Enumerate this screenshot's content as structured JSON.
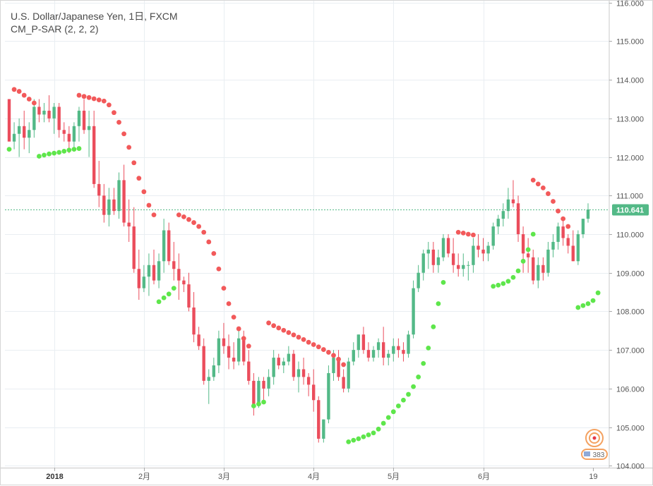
{
  "legend": {
    "title": "U.S. Dollar/Japanese Yen, 1日, FXCM",
    "indicator": "CM_P-SAR (2, 2, 2)"
  },
  "watermark": {
    "text": "383"
  },
  "chart_data": {
    "type": "candlestick",
    "ylim": [
      103.95,
      116.05
    ],
    "y_ticks": [
      "104.000",
      "105.000",
      "106.000",
      "107.000",
      "108.000",
      "109.000",
      "110.000",
      "111.000",
      "112.000",
      "113.000",
      "114.000",
      "115.000",
      "116.000"
    ],
    "x_ticks": [
      "2018",
      "2月",
      "3月",
      "4月",
      "5月",
      "6月",
      "19"
    ],
    "last_price": "110.641",
    "colors": {
      "up": "#53b987",
      "down": "#eb4d5c",
      "sar_up": "#5ee64b",
      "sar_down": "#f2595a",
      "grid": "#e9eef2",
      "price_line": "#53b987"
    },
    "candles": [
      [
        113.5,
        113.5,
        112.5,
        112.4
      ],
      [
        112.4,
        112.9,
        112.2,
        112.6
      ],
      [
        112.6,
        113.0,
        112.0,
        112.8
      ],
      [
        112.8,
        113.2,
        112.2,
        112.5
      ],
      [
        112.5,
        112.9,
        112.1,
        112.7
      ],
      [
        112.7,
        113.5,
        112.5,
        113.3
      ],
      [
        113.3,
        113.5,
        112.9,
        113.1
      ],
      [
        113.1,
        113.4,
        112.9,
        113.2
      ],
      [
        113.2,
        113.6,
        112.9,
        113.0
      ],
      [
        113.0,
        113.4,
        112.6,
        113.3
      ],
      [
        113.3,
        113.4,
        112.5,
        112.7
      ],
      [
        112.7,
        112.9,
        112.4,
        112.6
      ],
      [
        112.6,
        112.8,
        112.1,
        112.4
      ],
      [
        112.4,
        112.9,
        112.2,
        112.8
      ],
      [
        112.8,
        113.3,
        112.4,
        113.2
      ],
      [
        113.2,
        113.5,
        112.6,
        112.7
      ],
      [
        112.7,
        113.2,
        112.0,
        112.8
      ],
      [
        112.8,
        113.2,
        111.2,
        111.3
      ],
      [
        111.3,
        111.9,
        110.7,
        111.0
      ],
      [
        111.0,
        111.3,
        110.3,
        110.5
      ],
      [
        110.5,
        111.2,
        110.2,
        110.9
      ],
      [
        110.9,
        111.2,
        110.5,
        110.6
      ],
      [
        110.6,
        111.6,
        110.4,
        111.4
      ],
      [
        111.4,
        111.8,
        110.2,
        110.3
      ],
      [
        110.3,
        110.9,
        109.8,
        110.2
      ],
      [
        110.2,
        110.7,
        109.0,
        109.1
      ],
      [
        109.1,
        109.6,
        108.3,
        108.6
      ],
      [
        108.6,
        109.2,
        108.5,
        108.9
      ],
      [
        108.9,
        109.5,
        108.4,
        109.2
      ],
      [
        109.2,
        109.6,
        108.7,
        108.8
      ],
      [
        108.8,
        109.5,
        108.6,
        109.3
      ],
      [
        109.3,
        110.4,
        109.0,
        110.1
      ],
      [
        110.1,
        110.3,
        109.2,
        109.3
      ],
      [
        109.3,
        109.8,
        108.8,
        109.1
      ],
      [
        109.1,
        109.5,
        108.3,
        108.8
      ],
      [
        108.8,
        108.9,
        108.5,
        108.7
      ],
      [
        108.7,
        109.0,
        108.0,
        108.1
      ],
      [
        108.1,
        108.5,
        107.2,
        107.4
      ],
      [
        107.4,
        107.6,
        107.0,
        107.1
      ],
      [
        107.1,
        107.3,
        106.1,
        106.2
      ],
      [
        106.2,
        106.5,
        105.6,
        106.3
      ],
      [
        106.3,
        106.8,
        106.2,
        106.6
      ],
      [
        106.6,
        107.5,
        106.4,
        107.3
      ],
      [
        107.3,
        107.7,
        106.9,
        107.1
      ],
      [
        107.1,
        107.4,
        106.5,
        106.8
      ],
      [
        106.8,
        107.2,
        106.5,
        106.7
      ],
      [
        106.7,
        107.5,
        106.6,
        107.3
      ],
      [
        107.3,
        107.5,
        106.6,
        106.7
      ],
      [
        106.7,
        107.0,
        106.1,
        106.2
      ],
      [
        106.2,
        106.4,
        105.3,
        105.6
      ],
      [
        105.6,
        106.3,
        105.5,
        106.2
      ],
      [
        106.2,
        106.3,
        105.7,
        106.0
      ],
      [
        106.0,
        106.5,
        105.8,
        106.3
      ],
      [
        106.3,
        107.0,
        106.1,
        106.8
      ],
      [
        106.8,
        106.9,
        106.5,
        106.6
      ],
      [
        106.6,
        106.8,
        106.4,
        106.7
      ],
      [
        106.7,
        107.1,
        106.6,
        106.9
      ],
      [
        106.9,
        107.0,
        106.2,
        106.3
      ],
      [
        106.3,
        106.7,
        105.9,
        106.5
      ],
      [
        106.5,
        106.8,
        106.1,
        106.3
      ],
      [
        106.3,
        106.4,
        105.8,
        106.1
      ],
      [
        106.1,
        106.5,
        105.4,
        105.7
      ],
      [
        105.7,
        105.8,
        104.6,
        104.7
      ],
      [
        104.7,
        105.2,
        104.6,
        105.2
      ],
      [
        105.2,
        106.6,
        105.1,
        106.4
      ],
      [
        106.4,
        107.0,
        106.2,
        106.8
      ],
      [
        106.8,
        107.0,
        106.2,
        106.3
      ],
      [
        106.3,
        106.5,
        105.9,
        106.0
      ],
      [
        106.0,
        106.8,
        105.9,
        106.7
      ],
      [
        106.7,
        107.2,
        106.6,
        107.0
      ],
      [
        107.0,
        107.4,
        106.8,
        107.4
      ],
      [
        107.4,
        107.6,
        106.9,
        107.0
      ],
      [
        107.0,
        107.2,
        106.7,
        106.8
      ],
      [
        106.8,
        107.1,
        106.7,
        107.0
      ],
      [
        107.0,
        107.3,
        106.8,
        107.2
      ],
      [
        107.2,
        107.6,
        106.6,
        106.8
      ],
      [
        106.8,
        107.0,
        106.6,
        106.9
      ],
      [
        106.9,
        107.3,
        106.7,
        107.1
      ],
      [
        107.1,
        107.3,
        106.8,
        107.0
      ],
      [
        107.0,
        107.2,
        106.7,
        106.9
      ],
      [
        106.9,
        107.5,
        106.8,
        107.4
      ],
      [
        107.4,
        108.8,
        107.3,
        108.6
      ],
      [
        108.6,
        109.2,
        108.5,
        109.0
      ],
      [
        109.0,
        109.6,
        108.8,
        109.5
      ],
      [
        109.5,
        109.8,
        109.1,
        109.6
      ],
      [
        109.6,
        109.8,
        109.0,
        109.2
      ],
      [
        109.2,
        109.6,
        109.0,
        109.4
      ],
      [
        109.4,
        110.0,
        109.3,
        109.9
      ],
      [
        109.9,
        110.0,
        109.4,
        109.5
      ],
      [
        109.5,
        109.9,
        109.0,
        109.2
      ],
      [
        109.2,
        109.5,
        108.9,
        109.1
      ],
      [
        109.1,
        109.5,
        108.9,
        109.2
      ],
      [
        109.2,
        109.3,
        108.8,
        109.2
      ],
      [
        109.2,
        109.9,
        109.0,
        109.7
      ],
      [
        109.7,
        110.0,
        109.4,
        109.6
      ],
      [
        109.6,
        109.9,
        109.3,
        109.5
      ],
      [
        109.5,
        109.8,
        109.3,
        109.7
      ],
      [
        109.7,
        110.3,
        109.6,
        110.2
      ],
      [
        110.2,
        110.5,
        110.0,
        110.4
      ],
      [
        110.4,
        110.8,
        110.2,
        110.6
      ],
      [
        110.6,
        111.2,
        110.4,
        110.9
      ],
      [
        110.9,
        111.4,
        110.7,
        110.8
      ],
      [
        110.8,
        111.0,
        109.8,
        110.0
      ],
      [
        110.0,
        110.2,
        109.0,
        109.5
      ],
      [
        109.5,
        109.9,
        109.0,
        109.4
      ],
      [
        109.4,
        109.6,
        108.7,
        108.8
      ],
      [
        108.8,
        109.4,
        108.6,
        109.2
      ],
      [
        109.2,
        109.4,
        108.8,
        109.0
      ],
      [
        109.0,
        109.8,
        108.9,
        109.6
      ],
      [
        109.6,
        110.0,
        109.4,
        109.8
      ],
      [
        109.8,
        110.3,
        109.6,
        110.2
      ],
      [
        110.2,
        110.4,
        109.7,
        109.9
      ],
      [
        109.9,
        110.0,
        109.5,
        109.7
      ],
      [
        109.7,
        110.1,
        109.3,
        109.3
      ],
      [
        109.3,
        110.1,
        109.2,
        110.0
      ],
      [
        110.0,
        110.4,
        109.9,
        110.4
      ],
      [
        110.4,
        110.8,
        110.3,
        110.64
      ]
    ],
    "sar": [
      {
        "start": 0,
        "side": "long",
        "values": [
          112.2
        ]
      },
      {
        "start": 1,
        "side": "short",
        "values": [
          113.75,
          113.7,
          113.6,
          113.5,
          113.4
        ]
      },
      {
        "start": 6,
        "side": "long",
        "values": [
          112.02,
          112.05,
          112.08,
          112.1,
          112.12,
          112.15,
          112.18,
          112.2,
          112.22
        ]
      },
      {
        "start": 14,
        "side": "short",
        "values": [
          113.6,
          113.57,
          113.54,
          113.51,
          113.48,
          113.45,
          113.35,
          113.15,
          112.9,
          112.6,
          112.25,
          111.85,
          111.45,
          111.1,
          110.75,
          110.5
        ]
      },
      {
        "start": 30,
        "side": "long",
        "values": [
          108.25,
          108.35,
          108.45,
          108.6
        ]
      },
      {
        "start": 34,
        "side": "short",
        "values": [
          110.5,
          110.45,
          110.38,
          110.3,
          110.2,
          110.05,
          109.8,
          109.5,
          109.1,
          108.6,
          108.2,
          107.85,
          107.55,
          107.3,
          107.1
        ]
      },
      {
        "start": 49,
        "side": "long",
        "values": [
          105.55,
          105.6,
          105.65
        ]
      },
      {
        "start": 52,
        "side": "short",
        "values": [
          107.7,
          107.63,
          107.57,
          107.51,
          107.45,
          107.39,
          107.33,
          107.27,
          107.2,
          107.14,
          107.08,
          107.01,
          106.94,
          106.86,
          106.76,
          106.62
        ]
      },
      {
        "start": 68,
        "side": "long",
        "values": [
          104.62,
          104.66,
          104.7,
          104.75,
          104.8,
          104.85,
          104.95,
          105.1,
          105.25,
          105.4,
          105.55,
          105.7,
          105.85,
          106.05,
          106.3,
          106.65,
          107.05,
          107.6,
          108.2,
          108.75
        ]
      },
      {
        "start": 90,
        "side": "short",
        "values": [
          110.05,
          110.03,
          110.0,
          109.98
        ]
      },
      {
        "start": 97,
        "side": "long",
        "values": [
          108.65,
          108.68,
          108.72,
          108.78,
          108.88,
          109.05,
          109.3,
          109.6,
          110.0
        ]
      },
      {
        "start": 105,
        "side": "short",
        "values": [
          111.4,
          111.3,
          111.2,
          111.05,
          110.85,
          110.6,
          110.4,
          110.2
        ]
      },
      {
        "start": 114,
        "side": "long",
        "values": [
          108.1,
          108.15,
          108.2,
          108.28,
          108.48
        ]
      }
    ]
  }
}
